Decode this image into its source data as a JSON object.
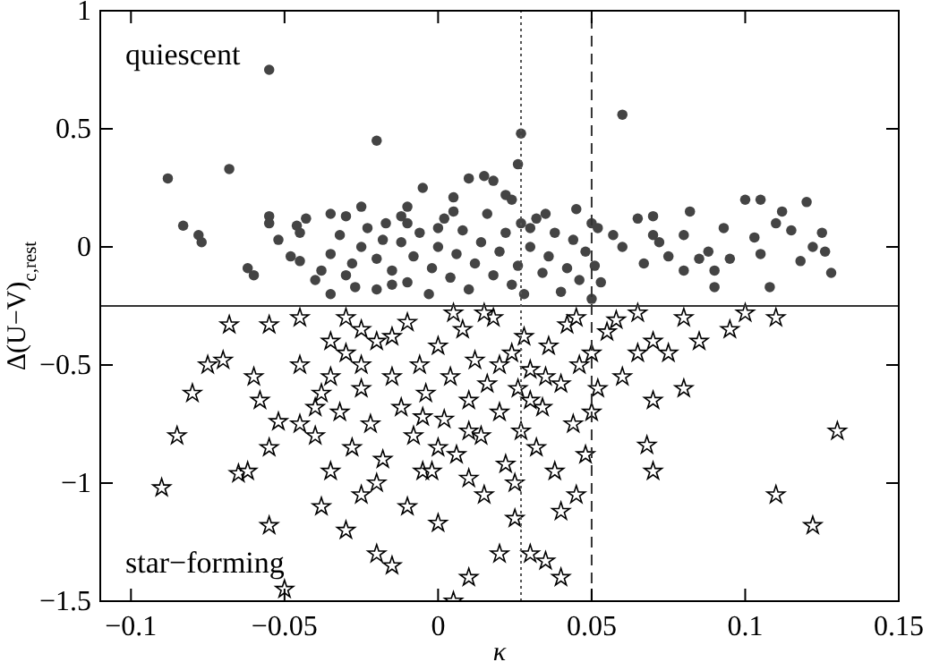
{
  "chart_data": {
    "type": "scatter",
    "xlabel": "κ",
    "ylabel": "Δ(U−V)$_{c,rest}$",
    "annotations": [
      "quiescent",
      "star−forming"
    ],
    "xlim": [
      -0.11,
      0.15
    ],
    "xticks": [
      -0.1,
      -0.05,
      0,
      0.05,
      0.1,
      0.15
    ],
    "ylim": [
      -1.5,
      1
    ],
    "yticks": [
      -1.5,
      -1,
      -0.5,
      0,
      0.5,
      1
    ],
    "ref_lines": [
      {
        "axis": "y",
        "value": -0.25,
        "line_style": "solid",
        "color": "#333333"
      },
      {
        "axis": "x",
        "value": 0.027,
        "line_style": "dotted",
        "color": "#555555"
      },
      {
        "axis": "x",
        "value": 0.05,
        "line_style": "dashed",
        "color": "#333333"
      }
    ],
    "series": [
      {
        "color": "#444444",
        "marker": "circle",
        "x": [
          -0.055,
          -0.088,
          -0.083,
          -0.078,
          -0.077,
          -0.068,
          -0.062,
          -0.06,
          -0.055,
          -0.055,
          -0.052,
          -0.048,
          -0.045,
          -0.046,
          -0.045,
          -0.043,
          -0.04,
          -0.035,
          -0.035,
          -0.03,
          -0.025,
          -0.02,
          -0.018,
          -0.015,
          -0.012,
          -0.01,
          -0.005,
          0,
          0.005,
          0.01,
          0.015,
          0.018,
          0.022,
          0.027,
          0.026,
          0.024,
          0.035,
          0.045,
          0.05,
          0.06,
          0.052,
          0.057,
          0.06,
          0.065,
          0.067,
          0.07,
          0.072,
          0.075,
          0.08,
          0.082,
          0.085,
          0.088,
          0.09,
          0.093,
          0.095,
          0.1,
          0.103,
          0.105,
          0.108,
          0.11,
          0.112,
          0.115,
          0.118,
          0.12,
          0.122,
          0.125,
          0.126,
          0.128,
          0.105,
          0.09,
          0.08,
          0.07,
          -0.038,
          -0.035,
          -0.032,
          -0.03,
          -0.028,
          -0.025,
          -0.023,
          -0.02,
          -0.02,
          -0.017,
          -0.015,
          -0.012,
          -0.01,
          -0.008,
          -0.006,
          -0.003,
          -0.002,
          0,
          0.002,
          0.004,
          0.006,
          0.008,
          0.01,
          0.012,
          0.014,
          0.016,
          0.018,
          0.02,
          0.022,
          0.024,
          0.026,
          0.027,
          0.028,
          0.03,
          0.032,
          0.034,
          0.036,
          0.038,
          0.04,
          0.042,
          0.044,
          0.046,
          0.048,
          0.05,
          0.051,
          0.053,
          -0.01,
          0.005,
          0.03,
          -0.027
        ],
        "values": [
          0.75,
          0.29,
          0.09,
          0.05,
          0.02,
          0.33,
          -0.09,
          -0.12,
          0.13,
          0.1,
          0.03,
          -0.04,
          -0.06,
          0.09,
          0.06,
          0.12,
          -0.14,
          -0.2,
          0.14,
          0.13,
          0.17,
          0.45,
          0.03,
          -0.16,
          0.13,
          0.17,
          0.25,
          0.08,
          0.21,
          0.29,
          0.3,
          0.28,
          0.22,
          0.48,
          0.35,
          0.2,
          0.14,
          0.16,
          0.1,
          0.56,
          0.08,
          0.05,
          0,
          0.12,
          -0.07,
          0.13,
          0.02,
          -0.04,
          0.05,
          0.15,
          -0.05,
          -0.02,
          -0.1,
          0.08,
          -0.05,
          0.2,
          0.04,
          -0.03,
          -0.17,
          0.1,
          0.15,
          0.07,
          -0.06,
          0.19,
          0,
          0.06,
          -0.02,
          -0.11,
          0.2,
          -0.17,
          -0.1,
          0.05,
          -0.1,
          -0.03,
          0.05,
          -0.12,
          -0.07,
          0,
          0.08,
          -0.18,
          -0.05,
          0.1,
          -0.1,
          0.02,
          -0.15,
          -0.04,
          0.06,
          -0.2,
          -0.09,
          0,
          0.12,
          -0.13,
          -0.03,
          0.07,
          -0.18,
          -0.07,
          0.02,
          0.14,
          -0.12,
          -0.02,
          0.06,
          -0.16,
          -0.08,
          0.1,
          -0.2,
          0,
          0.12,
          -0.11,
          -0.04,
          0.06,
          -0.19,
          -0.09,
          0.03,
          -0.14,
          -0.02,
          -0.22,
          -0.08,
          -0.15,
          0.1,
          0.15,
          0.08,
          -0.17
        ]
      },
      {
        "color": "#000000",
        "marker": "star",
        "x": [
          -0.09,
          -0.085,
          -0.08,
          -0.075,
          -0.07,
          -0.068,
          -0.065,
          -0.062,
          -0.058,
          -0.055,
          -0.052,
          -0.05,
          -0.055,
          -0.045,
          -0.045,
          -0.04,
          -0.038,
          -0.035,
          -0.03,
          -0.025,
          -0.02,
          -0.015,
          0.005,
          0.01,
          0.02,
          0,
          0.04,
          0.035,
          0.03,
          0.05,
          0.055,
          0.06,
          0.065,
          0.068,
          0.07,
          0.07,
          0.07,
          0.075,
          0.08,
          0.085,
          0.08,
          0.095,
          0.1,
          0.11,
          0.11,
          0.122,
          0.13,
          0.065,
          0.058,
          0.045,
          0.04,
          0.025,
          0.015,
          -0.01,
          -0.005,
          -0.025,
          -0.035,
          -0.045,
          -0.055,
          -0.06,
          -0.035,
          -0.032,
          -0.03,
          -0.028,
          -0.025,
          -0.022,
          -0.02,
          -0.018,
          -0.015,
          -0.012,
          -0.01,
          -0.008,
          -0.006,
          -0.004,
          -0.002,
          0,
          0.002,
          0.004,
          0.006,
          0.008,
          0.01,
          0.012,
          0.014,
          0.016,
          0.018,
          0.02,
          0.022,
          0.024,
          0.026,
          0.027,
          0.028,
          0.03,
          0.032,
          0.034,
          0.036,
          0.038,
          0.04,
          0.042,
          0.044,
          0.046,
          0.048,
          0.05,
          0.052,
          -0.03,
          -0.02,
          0,
          0.01,
          -0.015,
          0.025,
          0.045,
          -0.04,
          -0.038,
          0.015,
          0.005,
          -0.005,
          0.035,
          0.02,
          -0.025,
          0.03,
          0.01
        ],
        "values": [
          -1.02,
          -0.8,
          -0.62,
          -0.5,
          -0.48,
          -0.33,
          -0.96,
          -0.95,
          -0.65,
          -0.85,
          -0.74,
          -1.45,
          -1.18,
          -0.5,
          -0.75,
          -0.68,
          -1.1,
          -0.4,
          -1.2,
          -0.35,
          -1.3,
          -1.35,
          -1.5,
          -1.4,
          -1.3,
          -1.17,
          -1.4,
          -1.33,
          -1.3,
          -0.7,
          -0.36,
          -0.55,
          -0.45,
          -0.84,
          -0.95,
          -0.65,
          -0.4,
          -0.45,
          -0.6,
          -0.4,
          -0.3,
          -0.35,
          -0.28,
          -1.05,
          -0.3,
          -1.18,
          -0.78,
          -0.28,
          -0.31,
          -1.05,
          -1.12,
          -1.15,
          -1.05,
          -1.1,
          -0.95,
          -1.05,
          -0.95,
          -0.3,
          -0.33,
          -0.55,
          -0.55,
          -0.7,
          -0.45,
          -0.85,
          -0.6,
          -0.75,
          -0.4,
          -0.9,
          -0.55,
          -0.68,
          -0.32,
          -0.8,
          -0.5,
          -0.62,
          -0.95,
          -0.42,
          -0.73,
          -0.55,
          -0.88,
          -0.35,
          -0.65,
          -0.48,
          -0.8,
          -0.58,
          -0.3,
          -0.7,
          -0.92,
          -0.45,
          -0.6,
          -0.78,
          -0.38,
          -0.52,
          -0.85,
          -0.68,
          -0.42,
          -0.95,
          -0.58,
          -0.33,
          -0.75,
          -0.5,
          -0.88,
          -0.45,
          -0.6,
          -0.3,
          -1,
          -0.85,
          -0.98,
          -0.38,
          -1,
          -0.3,
          -0.8,
          -0.62,
          -0.28,
          -0.28,
          -0.72,
          -0.55,
          -0.5,
          -0.5,
          -0.65,
          -0.78
        ]
      }
    ]
  }
}
